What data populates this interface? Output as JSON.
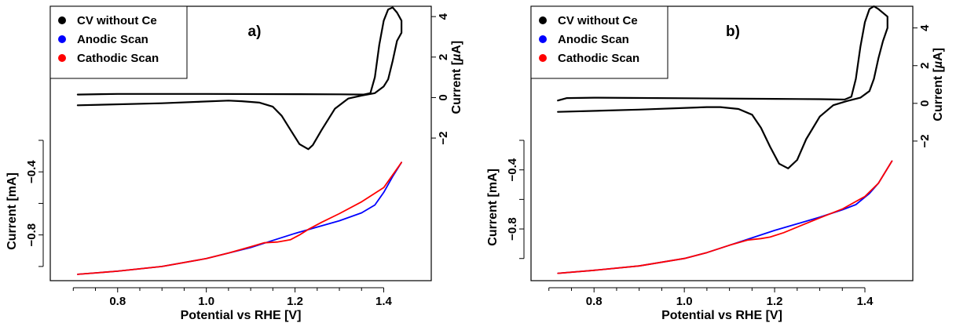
{
  "chart_data": [
    {
      "type": "line",
      "panel_label": "a)",
      "xlabel": "Potential vs RHE [V]",
      "ylabel_left": "Current [mA]",
      "ylabel_right": "Current [µA]",
      "ylabel_right_parts": [
        "Current [",
        "µ",
        "A]"
      ],
      "x_ticks": [
        0.8,
        1.0,
        1.2,
        1.4
      ],
      "x_tick_labels": [
        "0.8",
        "1.0",
        "1.2",
        "1.4"
      ],
      "xlim": [
        0.68,
        1.47
      ],
      "left_axis": {
        "ticks": [
          -0.4,
          -0.8
        ],
        "tick_labels": [
          "−0.4",
          "−0.8"
        ],
        "extra_ticks": [
          -0.2,
          -0.6,
          -1.0
        ],
        "ylim": [
          -1.1,
          -0.2
        ]
      },
      "right_axis": {
        "ticks": [
          -2,
          0,
          2,
          4
        ],
        "tick_labels": [
          "−2",
          "0",
          "2",
          "4"
        ],
        "ylim": [
          -2.5,
          4.2
        ]
      },
      "legend": {
        "placement": "top-left",
        "items": [
          {
            "label": "CV without Ce",
            "color": "#000000"
          },
          {
            "label": "Anodic Scan",
            "color": "#0000ff"
          },
          {
            "label": "Cathodic Scan",
            "color": "#ff0000"
          }
        ]
      },
      "series": [
        {
          "name": "CV without Ce",
          "color": "#000000",
          "axis": "right",
          "points": [
            [
              0.71,
              0.15
            ],
            [
              0.8,
              0.18
            ],
            [
              1.0,
              0.18
            ],
            [
              1.2,
              0.17
            ],
            [
              1.3,
              0.16
            ],
            [
              1.355,
              0.15
            ],
            [
              1.37,
              0.22
            ],
            [
              1.38,
              1.0
            ],
            [
              1.39,
              2.6
            ],
            [
              1.4,
              3.8
            ],
            [
              1.41,
              4.35
            ],
            [
              1.42,
              4.45
            ],
            [
              1.43,
              4.2
            ],
            [
              1.44,
              3.8
            ],
            [
              1.44,
              3.2
            ],
            [
              1.43,
              2.8
            ],
            [
              1.42,
              1.8
            ],
            [
              1.41,
              0.9
            ],
            [
              1.4,
              0.55
            ],
            [
              1.38,
              0.22
            ],
            [
              1.35,
              0.1
            ],
            [
              1.32,
              -0.05
            ],
            [
              1.29,
              -0.55
            ],
            [
              1.26,
              -1.6
            ],
            [
              1.24,
              -2.35
            ],
            [
              1.23,
              -2.55
            ],
            [
              1.21,
              -2.3
            ],
            [
              1.19,
              -1.6
            ],
            [
              1.17,
              -0.9
            ],
            [
              1.15,
              -0.45
            ],
            [
              1.12,
              -0.25
            ],
            [
              1.08,
              -0.18
            ],
            [
              1.05,
              -0.15
            ],
            [
              0.9,
              -0.28
            ],
            [
              0.71,
              -0.38
            ]
          ]
        },
        {
          "name": "Anodic Scan",
          "color": "#0000ff",
          "axis": "left",
          "points": [
            [
              0.71,
              -1.05
            ],
            [
              0.8,
              -1.03
            ],
            [
              0.9,
              -1.0
            ],
            [
              1.0,
              -0.95
            ],
            [
              1.05,
              -0.915
            ],
            [
              1.1,
              -0.88
            ],
            [
              1.15,
              -0.835
            ],
            [
              1.2,
              -0.79
            ],
            [
              1.25,
              -0.75
            ],
            [
              1.3,
              -0.71
            ],
            [
              1.35,
              -0.66
            ],
            [
              1.38,
              -0.61
            ],
            [
              1.4,
              -0.53
            ],
            [
              1.42,
              -0.43
            ],
            [
              1.44,
              -0.34
            ]
          ]
        },
        {
          "name": "Cathodic Scan",
          "color": "#ff0000",
          "axis": "left",
          "points": [
            [
              0.71,
              -1.05
            ],
            [
              0.8,
              -1.03
            ],
            [
              0.9,
              -1.0
            ],
            [
              1.0,
              -0.95
            ],
            [
              1.05,
              -0.915
            ],
            [
              1.1,
              -0.875
            ],
            [
              1.13,
              -0.85
            ],
            [
              1.16,
              -0.845
            ],
            [
              1.19,
              -0.83
            ],
            [
              1.21,
              -0.8
            ],
            [
              1.23,
              -0.765
            ],
            [
              1.26,
              -0.72
            ],
            [
              1.3,
              -0.665
            ],
            [
              1.35,
              -0.59
            ],
            [
              1.4,
              -0.5
            ],
            [
              1.44,
              -0.34
            ]
          ]
        }
      ]
    },
    {
      "type": "line",
      "panel_label": "b)",
      "xlabel": "Potential vs RHE [V]",
      "ylabel_left": "Current [mA]",
      "ylabel_right": "Current [µA]",
      "ylabel_right_parts": [
        "Current [",
        "µ",
        "A]"
      ],
      "x_ticks": [
        0.8,
        1.0,
        1.2,
        1.4
      ],
      "x_tick_labels": [
        "0.8",
        "1.0",
        "1.2",
        "1.4"
      ],
      "xlim": [
        0.69,
        1.48
      ],
      "left_axis": {
        "ticks": [
          -0.4,
          -0.8
        ],
        "tick_labels": [
          "−0.4",
          "−0.8"
        ],
        "extra_ticks": [
          -0.2,
          -0.6,
          -1.0
        ],
        "ylim": [
          -1.15,
          -0.2
        ]
      },
      "right_axis": {
        "ticks": [
          -2,
          0,
          2,
          4
        ],
        "tick_labels": [
          "−2",
          "0",
          "2",
          "4"
        ],
        "ylim": [
          -3.5,
          4.9
        ]
      },
      "legend": {
        "placement": "top-left",
        "items": [
          {
            "label": "CV without Ce",
            "color": "#000000"
          },
          {
            "label": "Anodic Scan",
            "color": "#0000ff"
          },
          {
            "label": "Cathodic Scan",
            "color": "#ff0000"
          }
        ]
      },
      "series": [
        {
          "name": "CV without Ce",
          "color": "#000000",
          "axis": "right",
          "points": [
            [
              0.72,
              0.15
            ],
            [
              0.74,
              0.28
            ],
            [
              0.8,
              0.3
            ],
            [
              1.0,
              0.27
            ],
            [
              1.2,
              0.24
            ],
            [
              1.3,
              0.22
            ],
            [
              1.355,
              0.2
            ],
            [
              1.37,
              0.35
            ],
            [
              1.38,
              1.3
            ],
            [
              1.39,
              3.0
            ],
            [
              1.4,
              4.3
            ],
            [
              1.41,
              5.0
            ],
            [
              1.42,
              5.15
            ],
            [
              1.43,
              5.0
            ],
            [
              1.45,
              4.6
            ],
            [
              1.45,
              4.0
            ],
            [
              1.44,
              3.3
            ],
            [
              1.43,
              2.4
            ],
            [
              1.42,
              1.3
            ],
            [
              1.41,
              0.65
            ],
            [
              1.39,
              0.3
            ],
            [
              1.36,
              0.12
            ],
            [
              1.33,
              -0.1
            ],
            [
              1.3,
              -0.7
            ],
            [
              1.27,
              -1.9
            ],
            [
              1.25,
              -3.0
            ],
            [
              1.23,
              -3.45
            ],
            [
              1.21,
              -3.2
            ],
            [
              1.19,
              -2.3
            ],
            [
              1.17,
              -1.3
            ],
            [
              1.15,
              -0.6
            ],
            [
              1.12,
              -0.3
            ],
            [
              1.08,
              -0.2
            ],
            [
              1.05,
              -0.2
            ],
            [
              0.9,
              -0.33
            ],
            [
              0.72,
              -0.45
            ]
          ]
        },
        {
          "name": "Anodic Scan",
          "color": "#0000ff",
          "axis": "left",
          "points": [
            [
              0.72,
              -1.1
            ],
            [
              0.8,
              -1.08
            ],
            [
              0.9,
              -1.05
            ],
            [
              1.0,
              -1.0
            ],
            [
              1.05,
              -0.96
            ],
            [
              1.1,
              -0.91
            ],
            [
              1.15,
              -0.86
            ],
            [
              1.2,
              -0.81
            ],
            [
              1.25,
              -0.765
            ],
            [
              1.3,
              -0.72
            ],
            [
              1.35,
              -0.67
            ],
            [
              1.38,
              -0.635
            ],
            [
              1.41,
              -0.56
            ],
            [
              1.43,
              -0.49
            ],
            [
              1.46,
              -0.34
            ]
          ]
        },
        {
          "name": "Cathodic Scan",
          "color": "#ff0000",
          "axis": "left",
          "points": [
            [
              0.72,
              -1.1
            ],
            [
              0.8,
              -1.08
            ],
            [
              0.9,
              -1.05
            ],
            [
              1.0,
              -1.0
            ],
            [
              1.05,
              -0.96
            ],
            [
              1.1,
              -0.91
            ],
            [
              1.14,
              -0.875
            ],
            [
              1.17,
              -0.865
            ],
            [
              1.19,
              -0.855
            ],
            [
              1.22,
              -0.825
            ],
            [
              1.26,
              -0.775
            ],
            [
              1.3,
              -0.725
            ],
            [
              1.35,
              -0.665
            ],
            [
              1.4,
              -0.58
            ],
            [
              1.43,
              -0.49
            ],
            [
              1.46,
              -0.34
            ]
          ]
        }
      ]
    }
  ]
}
